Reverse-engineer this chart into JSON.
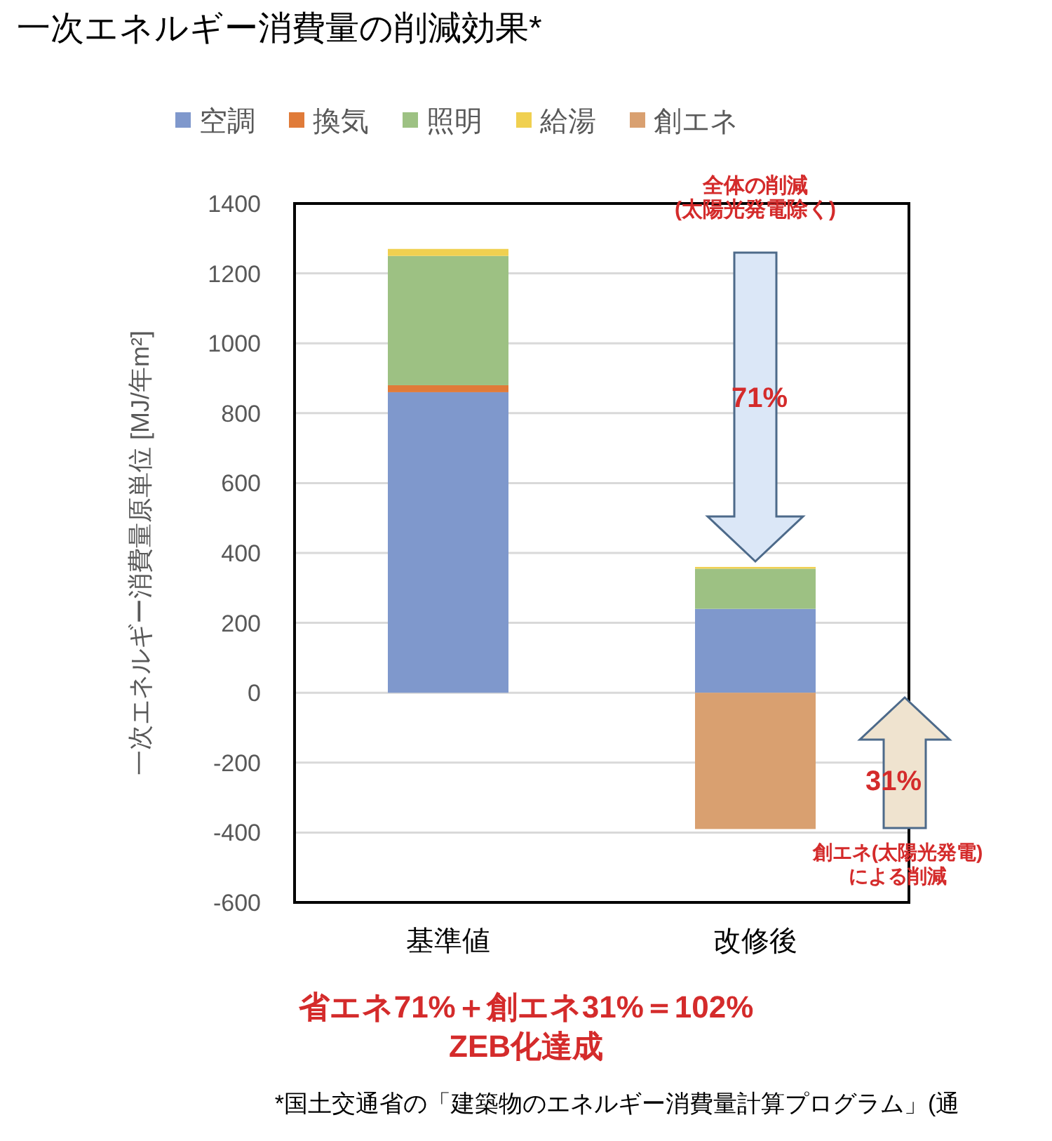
{
  "chart_data": {
    "type": "bar",
    "stacked": true,
    "title": "一次エネルギー消費量の削減効果*",
    "ylabel": "一次エネルギー消費量原単位 [MJ/年m²]",
    "categories": [
      "基準値",
      "改修後"
    ],
    "series": [
      {
        "name": "空調",
        "color": "#7f98cc",
        "values": [
          860,
          240
        ]
      },
      {
        "name": "換気",
        "color": "#e07b39",
        "values": [
          20,
          0
        ]
      },
      {
        "name": "照明",
        "color": "#9dc183",
        "values": [
          370,
          115
        ]
      },
      {
        "name": "給湯",
        "color": "#f0d050",
        "values": [
          20,
          5
        ]
      },
      {
        "name": "創エネ",
        "color": "#d9a070",
        "values": [
          0,
          -390
        ]
      }
    ],
    "ylim": [
      -600,
      1400
    ],
    "yticks": [
      -600,
      -400,
      -200,
      0,
      200,
      400,
      600,
      800,
      1000,
      1200,
      1400
    ],
    "grid": "y",
    "legend": "top",
    "annotations": [
      "全体の削減\n(太陽光発電除く)",
      "71%",
      "31%",
      "創エネ(太陽光発電)\nによる削減",
      "省エネ71%＋創エネ31%＝102%",
      "ZEB化達成",
      "*国土交通省の「建築物のエネルギー消費量計算プログラム」(通"
    ]
  }
}
